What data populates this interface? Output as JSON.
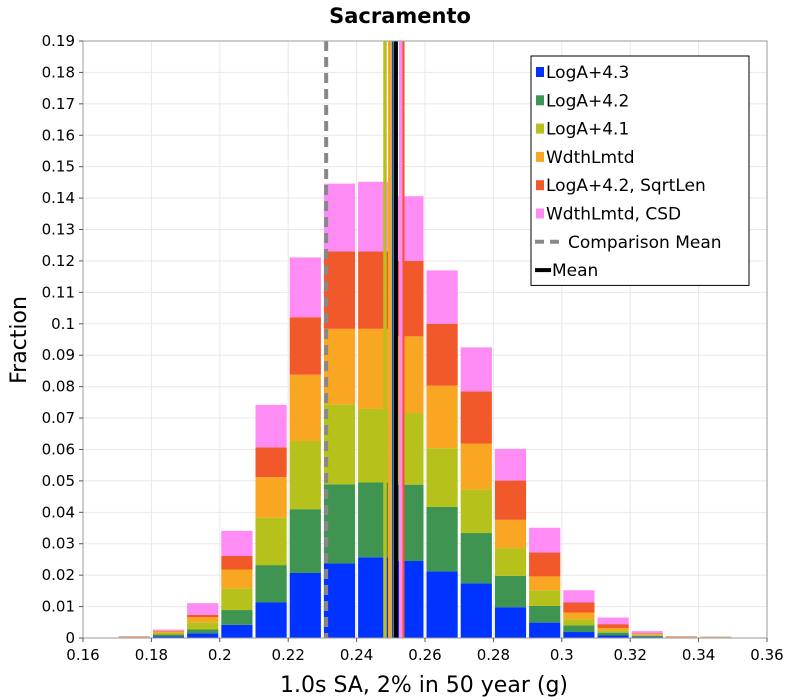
{
  "chart_data": {
    "type": "bar",
    "stacked": true,
    "title": "Sacramento",
    "xlabel": "1.0s SA, 2% in 50 year (g)",
    "ylabel": "Fraction",
    "xlim": [
      0.16,
      0.36
    ],
    "ylim": [
      0,
      0.19
    ],
    "xticks": [
      "0.16",
      "0.18",
      "0.2",
      "0.22",
      "0.24",
      "0.26",
      "0.28",
      "0.3",
      "0.32",
      "0.34",
      "0.36"
    ],
    "yticks": [
      "0",
      "0.01",
      "0.02",
      "0.03",
      "0.04",
      "0.05",
      "0.06",
      "0.07",
      "0.08",
      "0.09",
      "0.1",
      "0.11",
      "0.12",
      "0.13",
      "0.14",
      "0.15",
      "0.16",
      "0.17",
      "0.18",
      "0.19"
    ],
    "grid": true,
    "legend_position": "top-right",
    "bin_width": 0.01,
    "bin_centers": [
      0.175,
      0.185,
      0.195,
      0.205,
      0.215,
      0.225,
      0.235,
      0.245,
      0.255,
      0.265,
      0.275,
      0.285,
      0.295,
      0.305,
      0.315,
      0.325,
      0.335,
      0.345
    ],
    "series": [
      {
        "name": "LogA+4.3",
        "color": "#0033ff",
        "values": [
          0.0001,
          0.0005,
          0.0015,
          0.0042,
          0.0113,
          0.0207,
          0.0237,
          0.0257,
          0.0245,
          0.0212,
          0.0174,
          0.0098,
          0.0049,
          0.0019,
          0.0008,
          0.0003,
          0.0001,
          0.0001
        ]
      },
      {
        "name": "LogA+4.2",
        "color": "#3e9450",
        "values": [
          0.0001,
          0.0006,
          0.0012,
          0.0047,
          0.0119,
          0.0203,
          0.0252,
          0.0238,
          0.0243,
          0.0205,
          0.016,
          0.01,
          0.0053,
          0.0021,
          0.0009,
          0.0004,
          0.0001,
          0.0001
        ]
      },
      {
        "name": "LogA+4.1",
        "color": "#b6c11c",
        "values": [
          0.0001,
          0.0005,
          0.0023,
          0.0069,
          0.0151,
          0.0217,
          0.0255,
          0.0234,
          0.0228,
          0.0187,
          0.0139,
          0.0088,
          0.005,
          0.002,
          0.0007,
          0.0003,
          0.0001,
          0.0001
        ]
      },
      {
        "name": "WdthLmtd",
        "color": "#f9a623",
        "values": [
          0.0001,
          0.0005,
          0.0016,
          0.006,
          0.0129,
          0.0211,
          0.024,
          0.0255,
          0.0244,
          0.0199,
          0.0146,
          0.009,
          0.0044,
          0.0021,
          0.0008,
          0.0003,
          0.0001,
          0.0001
        ]
      },
      {
        "name": "LogA+4.2, SqrtLen",
        "color": "#f2592a",
        "values": [
          0.0001,
          0.0002,
          0.0008,
          0.0043,
          0.0095,
          0.0183,
          0.0246,
          0.0246,
          0.024,
          0.0197,
          0.0166,
          0.0125,
          0.0076,
          0.0032,
          0.0012,
          0.0002,
          0.0001,
          0.0
        ]
      },
      {
        "name": "WdthLmtd, CSD",
        "color": "#ff8cf5",
        "values": [
          0.0001,
          0.0004,
          0.0037,
          0.008,
          0.0135,
          0.019,
          0.0216,
          0.0222,
          0.0206,
          0.017,
          0.014,
          0.0101,
          0.0079,
          0.0039,
          0.0021,
          0.0007,
          0.0001,
          0.0001
        ]
      }
    ],
    "vertical_lines": [
      {
        "series": "LogA+4.1",
        "x": 0.2483,
        "color": "#b6c11c",
        "style": "solid"
      },
      {
        "series": "WdthLmtd",
        "x": 0.2497,
        "color": "#f9a623",
        "style": "solid"
      },
      {
        "series": "LogA+4.3",
        "x": 0.2508,
        "color": "#0033ff",
        "style": "solid"
      },
      {
        "series": "LogA+4.2",
        "x": 0.2511,
        "color": "#3e9450",
        "style": "solid"
      },
      {
        "series": "LogA+4.2, SqrtLen",
        "x": 0.2535,
        "color": "#f2592a",
        "style": "solid"
      },
      {
        "series": "WdthLmtd, CSD",
        "x": 0.2529,
        "color": "#ff8cf5",
        "style": "solid"
      },
      {
        "series": "Comparison Mean",
        "x": 0.2311,
        "color": "#888888",
        "style": "dashed"
      },
      {
        "series": "Mean",
        "x": 0.2515,
        "color": "#000000",
        "style": "solid"
      }
    ],
    "legend": [
      {
        "label": "LogA+4.3",
        "color": "#0033ff",
        "kind": "box"
      },
      {
        "label": "LogA+4.2",
        "color": "#3e9450",
        "kind": "box"
      },
      {
        "label": "LogA+4.1",
        "color": "#b6c11c",
        "kind": "box"
      },
      {
        "label": "WdthLmtd",
        "color": "#f9a623",
        "kind": "box"
      },
      {
        "label": "LogA+4.2, SqrtLen",
        "color": "#f2592a",
        "kind": "box"
      },
      {
        "label": "WdthLmtd, CSD",
        "color": "#ff8cf5",
        "kind": "box"
      },
      {
        "label": "Comparison Mean",
        "color": "#888888",
        "kind": "dashed"
      },
      {
        "label": "Mean",
        "color": "#000000",
        "kind": "line"
      }
    ]
  }
}
